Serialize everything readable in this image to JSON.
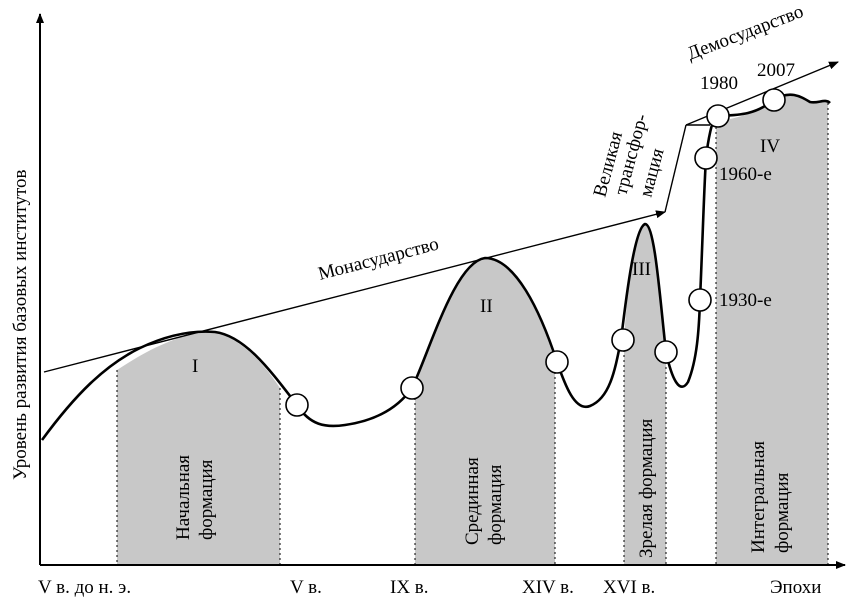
{
  "y_axis_label": "Уровень развития базовых институтов",
  "x_axis": {
    "ticks": [
      "V в. до н. э.",
      "V в.",
      "IX в.",
      "XIV в.",
      "XVI в."
    ],
    "end_label": "Эпохи"
  },
  "trend_lines": {
    "monastate": "Монасударство",
    "transformation": [
      "Великая",
      "трансфор-",
      "мация"
    ],
    "demostate": "Демосударство"
  },
  "formations": [
    {
      "roman": "I",
      "label": [
        "Начальная",
        "формация"
      ]
    },
    {
      "roman": "II",
      "label": [
        "Срединная",
        "формация"
      ]
    },
    {
      "roman": "III",
      "label": [
        "Зрелая формация"
      ]
    },
    {
      "roman": "IV",
      "label": [
        "Интегральная",
        "формация"
      ]
    }
  ],
  "point_labels": {
    "p1930": "1930-е",
    "p1960": "1960-е",
    "p1980": "1980",
    "p2007": "2007"
  },
  "colors": {
    "formation_fill": "#c8c8c8",
    "line": "#000000",
    "marker_fill": "#ffffff"
  }
}
